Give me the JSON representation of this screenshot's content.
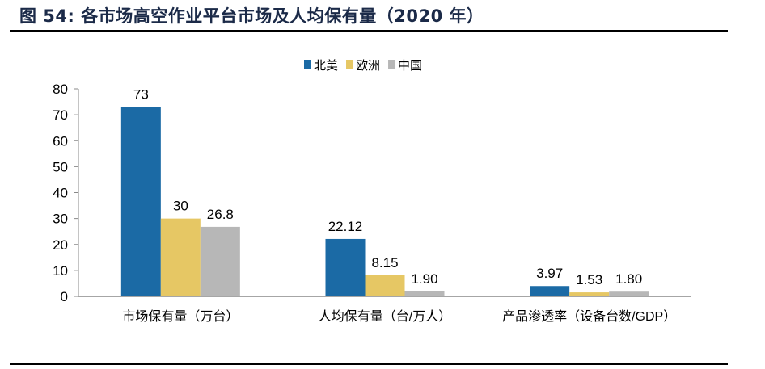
{
  "figure_title": "图 54: 各市场高空作业平台市场及人均保有量（2020 年）",
  "chart_data": {
    "type": "bar",
    "title": "各市场高空作业平台市场及人均保有量（2020 年）",
    "categories": [
      "市场保有量（万台）",
      "人均保有量（台/万人）",
      "产品渗透率（设备台数/GDP）"
    ],
    "series": [
      {
        "name": "北美",
        "color": "#1b6aa5",
        "values": [
          73,
          22.12,
          3.97
        ],
        "labels": [
          "73",
          "22.12",
          "3.97"
        ]
      },
      {
        "name": "欧洲",
        "color": "#e6c764",
        "values": [
          30,
          8.15,
          1.53
        ],
        "labels": [
          "30",
          "8.15",
          "1.53"
        ]
      },
      {
        "name": "中国",
        "color": "#b7b7b7",
        "values": [
          26.8,
          1.9,
          1.8
        ],
        "labels": [
          "26.8",
          "1.90",
          "1.80"
        ]
      }
    ],
    "xlabel": "",
    "ylabel": "",
    "ylim": [
      0,
      80
    ],
    "yticks": [
      0,
      10,
      20,
      30,
      40,
      50,
      60,
      70,
      80
    ],
    "grid": false,
    "legend": "top-center"
  }
}
